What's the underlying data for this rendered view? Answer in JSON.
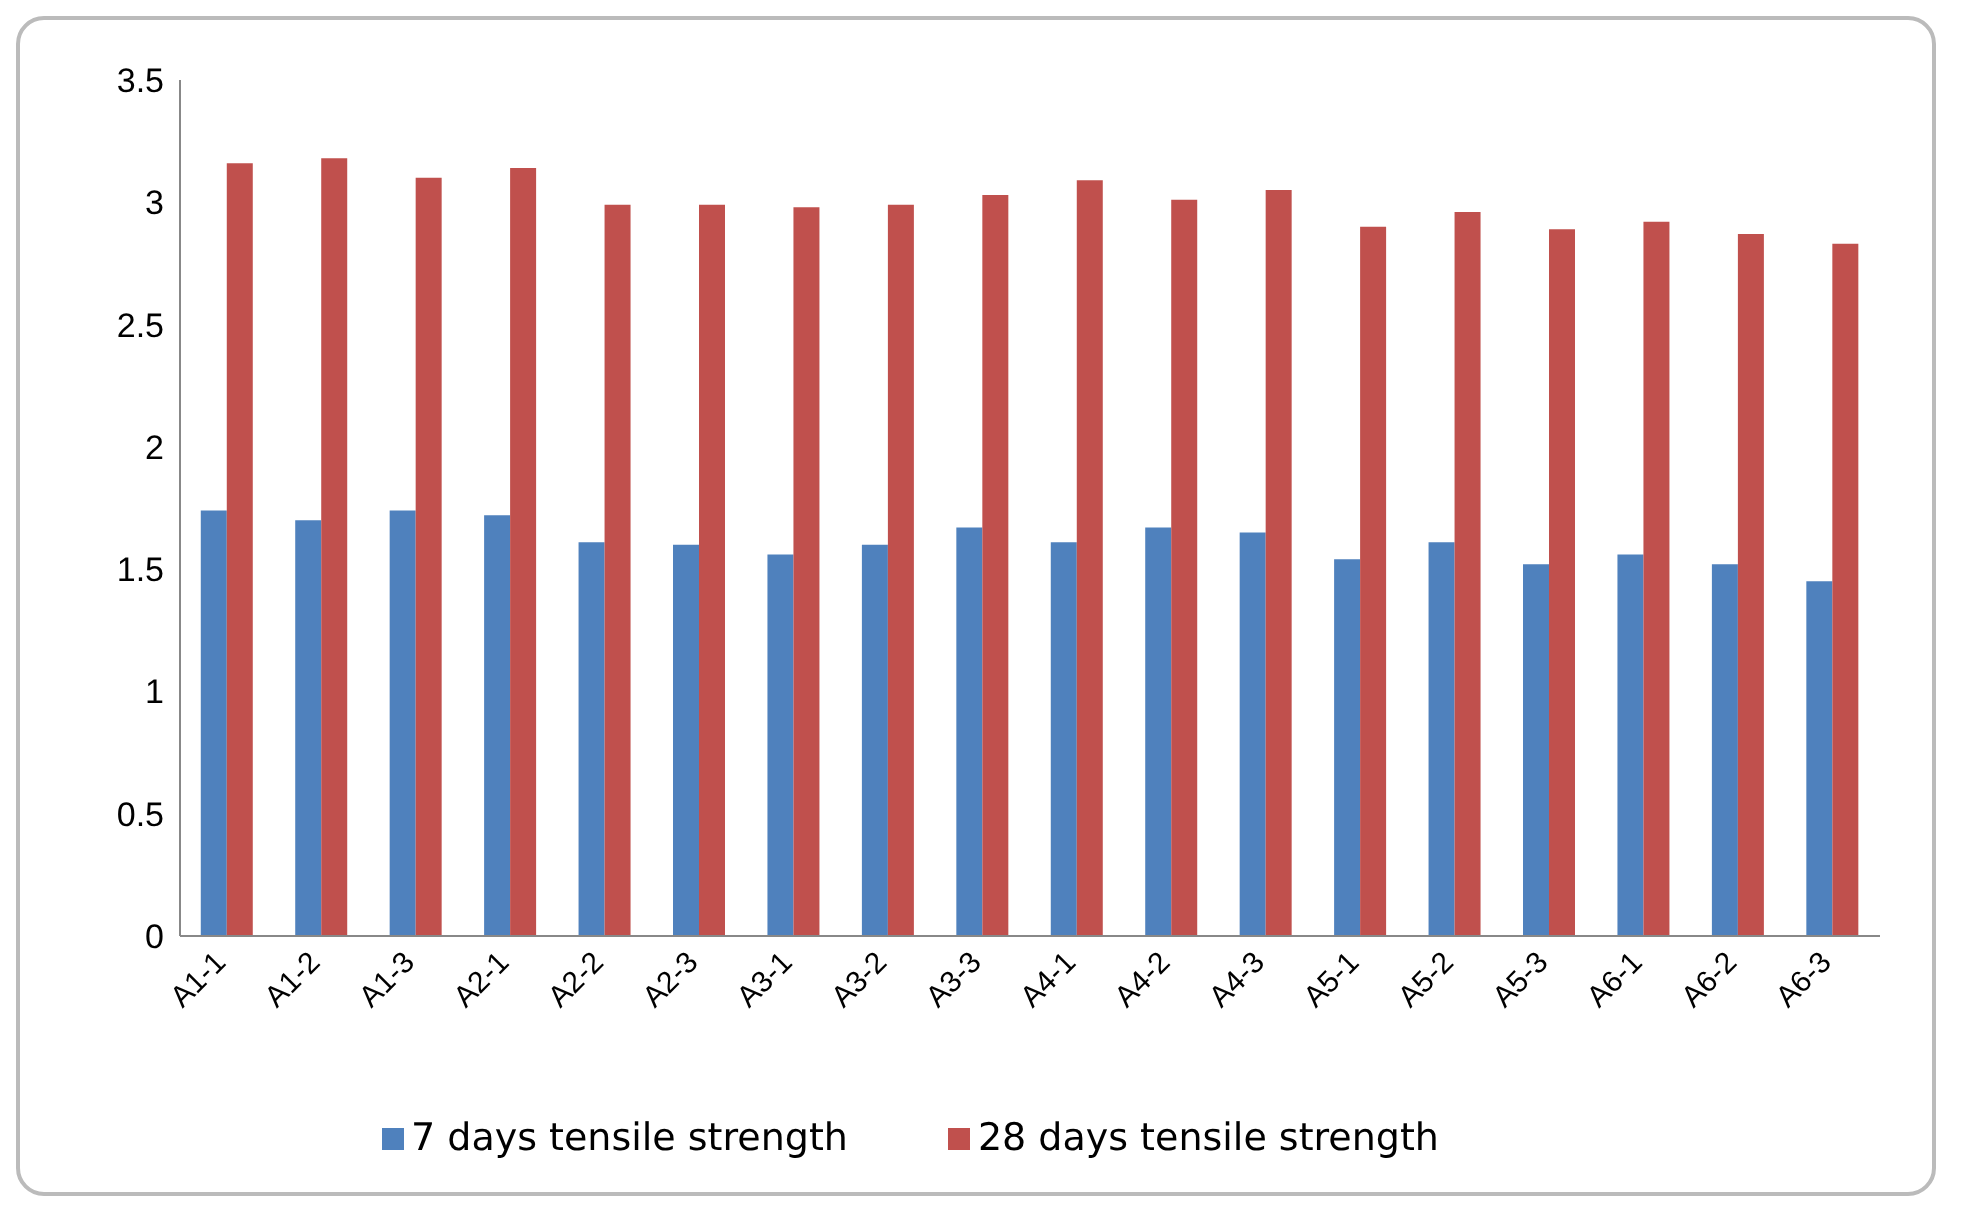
{
  "chart_data": {
    "type": "bar",
    "categories": [
      "A1-1",
      "A1-2",
      "A1-3",
      "A2-1",
      "A2-2",
      "A2-3",
      "A3-1",
      "A3-2",
      "A3-3",
      "A4-1",
      "A4-2",
      "A4-3",
      "A5-1",
      "A5-2",
      "A5-3",
      "A6-1",
      "A6-2",
      "A6-3"
    ],
    "series": [
      {
        "name": "7 days tensile strength",
        "color": "#4f81bd",
        "values": [
          1.74,
          1.7,
          1.74,
          1.72,
          1.61,
          1.6,
          1.56,
          1.6,
          1.67,
          1.61,
          1.67,
          1.65,
          1.54,
          1.61,
          1.52,
          1.56,
          1.52,
          1.45
        ]
      },
      {
        "name": "28 days tensile strength",
        "color": "#c0504d",
        "values": [
          3.16,
          3.18,
          3.1,
          3.14,
          2.99,
          2.99,
          2.98,
          2.99,
          3.03,
          3.09,
          3.01,
          3.05,
          2.9,
          2.96,
          2.89,
          2.92,
          2.87,
          2.83
        ]
      }
    ],
    "ylim": [
      0,
      3.5
    ],
    "yticks": [
      0,
      0.5,
      1,
      1.5,
      2,
      2.5,
      3,
      3.5
    ],
    "legend": "bottom",
    "grid": false
  }
}
